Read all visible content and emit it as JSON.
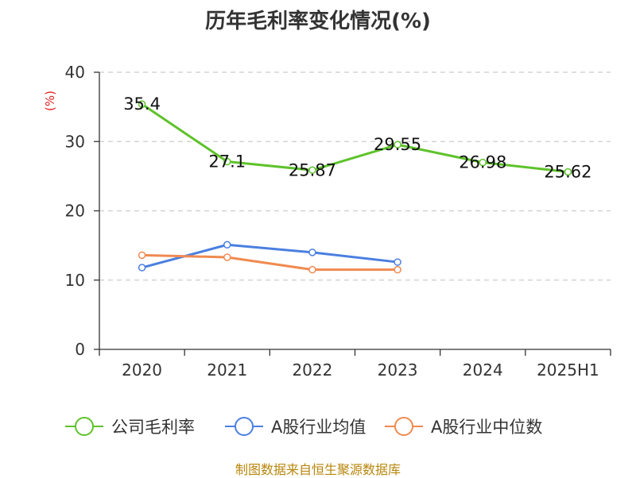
{
  "chart_data": {
    "type": "line",
    "title": "历年毛利率变化情况(%)",
    "ylabel": "(%)",
    "xlabel": "",
    "categories": [
      "2020",
      "2021",
      "2022",
      "2023",
      "2024",
      "2025H1"
    ],
    "ylim": [
      0,
      40
    ],
    "yticks": [
      0,
      10,
      20,
      30,
      40
    ],
    "grid": true,
    "legend_position": "bottom",
    "series": [
      {
        "name": "公司毛利率",
        "color": "#5ec22b",
        "values": [
          35.4,
          27.1,
          25.87,
          29.55,
          26.98,
          25.62
        ],
        "data_labels": [
          "35.4",
          "27.1",
          "25.87",
          "29.55",
          "26.98",
          "25.62"
        ]
      },
      {
        "name": "A股行业均值",
        "color": "#4a7fe0",
        "values": [
          11.8,
          15.1,
          14.0,
          12.6,
          null,
          null
        ]
      },
      {
        "name": "A股行业中位数",
        "color": "#f08a50",
        "values": [
          13.6,
          13.3,
          11.5,
          11.5,
          null,
          null
        ]
      }
    ]
  },
  "footer": {
    "source": "制图数据来自恒生聚源数据库"
  },
  "colors": {
    "axis": "#333333",
    "grid": "#cccccc",
    "ylabel": "#e02020"
  }
}
